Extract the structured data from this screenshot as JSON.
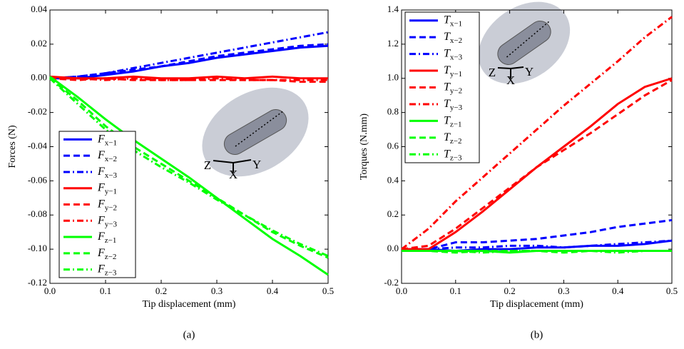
{
  "chart_data": [
    {
      "type": "line",
      "caption": "(a)",
      "xlabel": "Tip displacement (mm)",
      "ylabel": "Forces (N)",
      "x": [
        0,
        0.05,
        0.1,
        0.15,
        0.2,
        0.25,
        0.3,
        0.35,
        0.4,
        0.45,
        0.5
      ],
      "xlim": [
        0,
        0.5
      ],
      "xticks": [
        {
          "value": 0,
          "label": "0.0"
        },
        0.1,
        0.2,
        0.3,
        0.4,
        0.5
      ],
      "ylim": [
        -0.12,
        0.04
      ],
      "yticks": [
        -0.12,
        {
          "value": -0.1,
          "label": "-0.10"
        },
        -0.08,
        -0.06,
        -0.04,
        -0.02,
        {
          "value": 0,
          "label": "0.00"
        },
        0.02,
        0.04
      ],
      "legend": "lower left",
      "inset_labels": [
        "Z",
        "X",
        "Y"
      ],
      "series": [
        {
          "name": "Fx−1",
          "color": "#0000ff",
          "style": "solid",
          "values": [
            0,
            0,
            0.002,
            0.004,
            0.007,
            0.009,
            0.012,
            0.014,
            0.016,
            0.018,
            0.019
          ]
        },
        {
          "name": "Fx−2",
          "color": "#0000ff",
          "style": "dashed",
          "values": [
            0,
            0.001,
            0.003,
            0.005,
            0.007,
            0.01,
            0.013,
            0.015,
            0.017,
            0.019,
            0.02
          ]
        },
        {
          "name": "Fx−3",
          "color": "#0000ff",
          "style": "dashdot",
          "values": [
            0,
            0.001,
            0.003,
            0.006,
            0.009,
            0.012,
            0.015,
            0.018,
            0.021,
            0.024,
            0.027
          ]
        },
        {
          "name": "Fy−1",
          "color": "#ff0000",
          "style": "solid",
          "values": [
            0.001,
            0,
            0,
            0.001,
            0,
            0,
            0.001,
            0,
            0.001,
            0,
            0
          ]
        },
        {
          "name": "Fy−2",
          "color": "#ff0000",
          "style": "dashed",
          "values": [
            0,
            -0.001,
            0,
            -0.001,
            -0.001,
            -0.001,
            -0.001,
            -0.001,
            -0.001,
            -0.002,
            -0.002
          ]
        },
        {
          "name": "Fy−3",
          "color": "#ff0000",
          "style": "dashdot",
          "values": [
            0,
            0,
            -0.001,
            0,
            -0.001,
            -0.001,
            0,
            -0.001,
            -0.001,
            -0.001,
            -0.001
          ]
        },
        {
          "name": "Fz−1",
          "color": "#00ff00",
          "style": "solid",
          "values": [
            0.001,
            -0.011,
            -0.024,
            -0.036,
            -0.047,
            -0.058,
            -0.07,
            -0.082,
            -0.094,
            -0.104,
            -0.115
          ]
        },
        {
          "name": "Fz−2",
          "color": "#00ff00",
          "style": "dashed",
          "values": [
            0,
            -0.013,
            -0.028,
            -0.04,
            -0.05,
            -0.06,
            -0.07,
            -0.08,
            -0.09,
            -0.098,
            -0.105
          ]
        },
        {
          "name": "Fz−3",
          "color": "#00ff00",
          "style": "dashdot",
          "values": [
            0,
            -0.015,
            -0.03,
            -0.042,
            -0.052,
            -0.061,
            -0.071,
            -0.08,
            -0.089,
            -0.097,
            -0.104
          ]
        }
      ]
    },
    {
      "type": "line",
      "caption": "(b)",
      "xlabel": "Tip displacement (mm)",
      "ylabel": "Torques (N.mm)",
      "x": [
        0,
        0.05,
        0.1,
        0.15,
        0.2,
        0.25,
        0.3,
        0.35,
        0.4,
        0.45,
        0.5
      ],
      "xlim": [
        0,
        0.5
      ],
      "xticks": [
        {
          "value": 0,
          "label": "0.0"
        },
        0.1,
        0.2,
        0.3,
        0.4,
        0.5
      ],
      "ylim": [
        -0.2,
        1.4
      ],
      "yticks": [
        -0.2,
        {
          "value": 0,
          "label": "0.0"
        },
        0.2,
        0.4,
        0.6,
        0.8,
        {
          "value": 1,
          "label": "1.0"
        },
        1.2,
        1.4
      ],
      "legend": "upper left",
      "inset_labels": [
        "Z",
        "X",
        "Y"
      ],
      "series": [
        {
          "name": "Tx−1",
          "color": "#0000ff",
          "style": "solid",
          "values": [
            0,
            0,
            -0.01,
            0,
            0,
            0.01,
            0.01,
            0.02,
            0.02,
            0.03,
            0.05
          ]
        },
        {
          "name": "Tx−2",
          "color": "#0000ff",
          "style": "dashed",
          "values": [
            0,
            0,
            0.04,
            0.04,
            0.05,
            0.06,
            0.08,
            0.1,
            0.13,
            0.15,
            0.17
          ]
        },
        {
          "name": "Tx−3",
          "color": "#0000ff",
          "style": "dashdot",
          "values": [
            0,
            0,
            0.01,
            0.01,
            0.02,
            0.02,
            0.01,
            0.02,
            0.03,
            0.04,
            0.05
          ]
        },
        {
          "name": "Ty−1",
          "color": "#ff0000",
          "style": "solid",
          "values": [
            0,
            0,
            0.1,
            0.22,
            0.35,
            0.48,
            0.6,
            0.72,
            0.85,
            0.95,
            1.0
          ]
        },
        {
          "name": "Ty−2",
          "color": "#ff0000",
          "style": "dashed",
          "values": [
            0,
            0.02,
            0.12,
            0.24,
            0.36,
            0.48,
            0.58,
            0.68,
            0.79,
            0.9,
            0.99
          ]
        },
        {
          "name": "Ty−3",
          "color": "#ff0000",
          "style": "dashdot",
          "values": [
            0,
            0.12,
            0.28,
            0.42,
            0.56,
            0.7,
            0.84,
            0.97,
            1.1,
            1.24,
            1.36
          ]
        },
        {
          "name": "Tz−1",
          "color": "#00ff00",
          "style": "solid",
          "values": [
            -0.01,
            -0.01,
            -0.01,
            -0.01,
            -0.02,
            -0.01,
            -0.01,
            -0.01,
            -0.01,
            -0.01,
            -0.01
          ]
        },
        {
          "name": "Tz−2",
          "color": "#00ff00",
          "style": "dashed",
          "values": [
            -0.01,
            -0.01,
            -0.02,
            -0.01,
            -0.01,
            -0.01,
            -0.02,
            -0.01,
            -0.01,
            -0.01,
            -0.01
          ]
        },
        {
          "name": "Tz−3",
          "color": "#00ff00",
          "style": "dashdot",
          "values": [
            -0.01,
            -0.01,
            -0.01,
            -0.02,
            -0.01,
            -0.01,
            -0.01,
            -0.01,
            -0.02,
            -0.01,
            -0.01
          ]
        }
      ]
    }
  ]
}
